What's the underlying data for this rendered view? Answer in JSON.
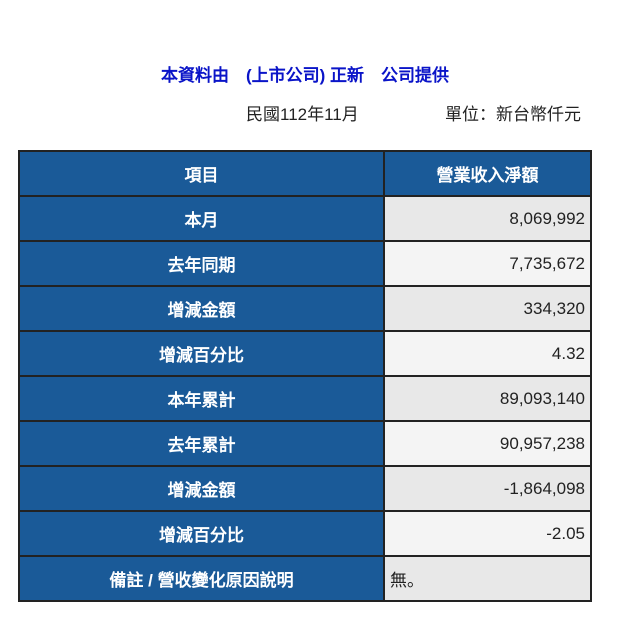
{
  "title": "本資料由　(上市公司) 正新　公司提供",
  "period": "民國112年11月",
  "unit": "單位：新台幣仟元",
  "table": {
    "headers": [
      "項目",
      "營業收入淨額"
    ],
    "rows": [
      {
        "label": "本月",
        "value": "8,069,992"
      },
      {
        "label": "去年同期",
        "value": "7,735,672"
      },
      {
        "label": "增減金額",
        "value": "334,320"
      },
      {
        "label": "增減百分比",
        "value": "4.32"
      },
      {
        "label": "本年累計",
        "value": "89,093,140"
      },
      {
        "label": "去年累計",
        "value": "90,957,238"
      },
      {
        "label": "增減金額",
        "value": "-1,864,098"
      },
      {
        "label": "增減百分比",
        "value": "-2.05"
      },
      {
        "label": "備註 / 營收變化原因說明",
        "value": "無。"
      }
    ]
  },
  "colors": {
    "header_bg": "#1a5a98",
    "title": "#0a14c8"
  }
}
